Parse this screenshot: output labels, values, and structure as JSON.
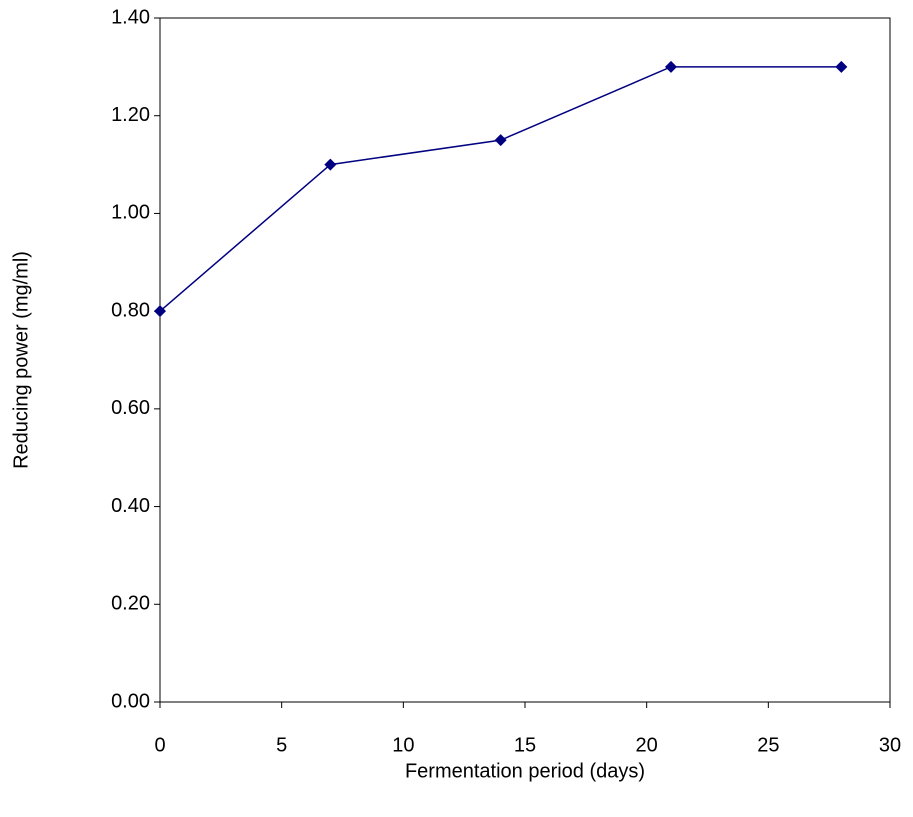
{
  "chart_data": {
    "type": "line",
    "x_label": "Fermentation period (days)",
    "y_label": "Reducing power (mg/ml)",
    "x": [
      0,
      7,
      14,
      21,
      28
    ],
    "series": [
      {
        "color": "#000080",
        "values": [
          0.8,
          1.1,
          1.15,
          1.3,
          1.3
        ]
      }
    ],
    "xlim": [
      0,
      30
    ],
    "xticks": [
      0,
      5,
      10,
      15,
      20,
      25,
      30
    ],
    "ylim": [
      0,
      1.4
    ],
    "yticks": [
      {
        "value": 0,
        "label": "0.00"
      },
      {
        "value": 0.2,
        "label": "0.20"
      },
      {
        "value": 0.4,
        "label": "0.40"
      },
      {
        "value": 0.6,
        "label": "0.60"
      },
      {
        "value": 0.8,
        "label": "0.80"
      },
      {
        "value": 1.0,
        "label": "1.00"
      },
      {
        "value": 1.2,
        "label": "1.20"
      },
      {
        "value": 1.4,
        "label": "1.40"
      }
    ],
    "grid": false
  }
}
